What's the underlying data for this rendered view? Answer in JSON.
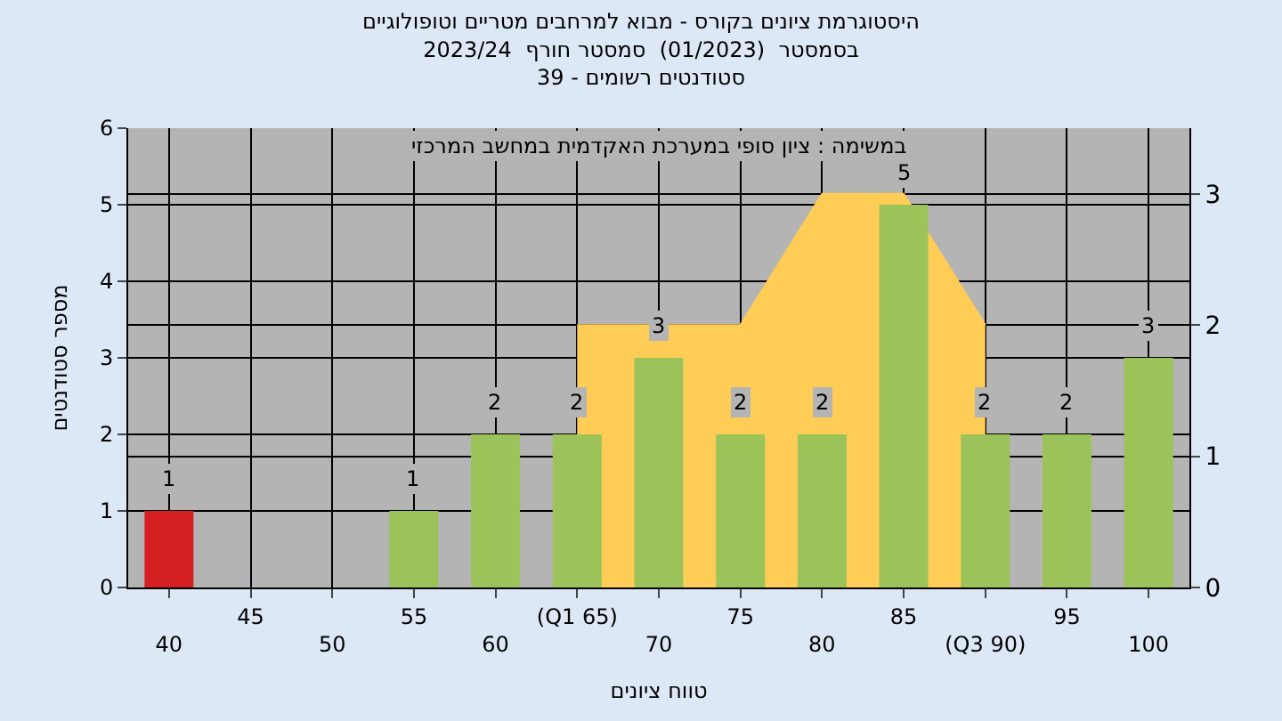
{
  "chart_data": {
    "type": "bar",
    "title": "היסטוגרמת ציונים בקורס - מבוא למרחבים מטריים וטופולוגיים\nבסמסטר  (01/2023)  סמסטר חורף  2023/24\nסטודנטים רשומים - 39",
    "annotations": [
      "במשימה : ציון סופי במערכת האקדמית במחשב המרכזי"
    ],
    "xlabel": "טווח ציונים",
    "ylabel": "מספר סטודנטים",
    "categories": [
      "40",
      "45",
      "50",
      "55",
      "60",
      "(Q1 65)",
      "70",
      "75",
      "80",
      "85",
      "(Q3 90)",
      "95",
      "100"
    ],
    "series": [
      {
        "values": [
          1,
          null,
          null,
          1,
          2,
          2,
          3,
          2,
          2,
          5,
          2,
          2,
          3
        ],
        "value_labels": [
          "1",
          null,
          null,
          "1",
          "2",
          "2",
          "3",
          "2",
          "2",
          "5",
          "2",
          "2",
          "3"
        ],
        "colors": [
          "#d42020",
          "#9cc35a",
          "#9cc35a",
          "#9cc35a",
          "#9cc35a",
          "#9cc35a",
          "#9cc35a",
          "#9cc35a",
          "#9cc35a",
          "#9cc35a",
          "#9cc35a",
          "#9cc35a",
          "#9cc35a"
        ]
      },
      {
        "type": "area",
        "axis": "y2",
        "color": "#ffcc55",
        "values": [
          null,
          null,
          null,
          null,
          null,
          2,
          2,
          2,
          3,
          3,
          2,
          null,
          null
        ]
      }
    ],
    "ylim": [
      0,
      6
    ],
    "yticks": [
      0,
      1,
      2,
      3,
      4,
      5,
      6
    ],
    "y2lim": [
      0,
      3.5
    ],
    "y2ticks": [
      0,
      1,
      2,
      3
    ],
    "grid": true
  }
}
